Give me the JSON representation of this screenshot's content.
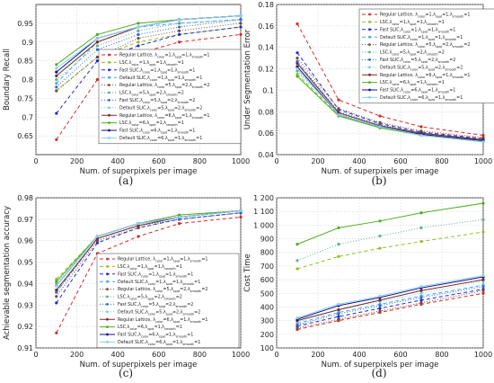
{
  "legend_series": [
    {
      "id": "rl1",
      "label": "Regular Lattice, λ_color=1,λ_spat=1,λ_smooth=1",
      "color": "#d62a2a",
      "dash": "4,3",
      "marker": "dot"
    },
    {
      "id": "lsc1",
      "label": "LSC,λ_color=1,λ_spat=1,λ_smooth=1",
      "color": "#8fc01e",
      "dash": "4,3",
      "marker": "dot"
    },
    {
      "id": "fast1",
      "label": "Fast SLIC,λ_color=1,λ_spat=1,λ_smooth=1",
      "color": "#1f2ad6",
      "dash": "4,3",
      "marker": "dot"
    },
    {
      "id": "def1",
      "label": "Default SLIC,λ_color=1,λ_spat=1,λ_smooth=1",
      "color": "#4aa8e8",
      "dash": "4,3",
      "marker": "dot"
    },
    {
      "id": "rl2",
      "label": "Regular Lattice, λ_color=5,λ_spat=2,λ_smooth=2",
      "color": "#7a4a3a",
      "dash": "1,2",
      "marker": "dot"
    },
    {
      "id": "lsc2",
      "label": "LSC,λ_color=5,λ_spat=2,λ_smooth=2",
      "color": "#5fb08a",
      "dash": "1,2",
      "marker": "dot"
    },
    {
      "id": "fast2",
      "label": "Fast SLIC,λ_color=5,λ_spat=2,λ_smooth=2",
      "color": "#2a6ad8",
      "dash": "1,2",
      "marker": "dot"
    },
    {
      "id": "def2",
      "label": "Default SLIC,λ_color=5,λ_spat=2,λ_smooth=2",
      "color": "#7ad0e8",
      "dash": "1,2",
      "marker": "dot"
    },
    {
      "id": "rl3",
      "label": "Regular Lattice, λ_color=6,λ_spat=1,λ_smooth=1",
      "color": "#7a2a2a",
      "dash": "",
      "marker": "dot"
    },
    {
      "id": "lsc3",
      "label": "LSC,λ_color=6,λ_spat=1,λ_smooth=1",
      "color": "#4caf1e",
      "dash": "",
      "marker": "dot"
    },
    {
      "id": "fast3",
      "label": "Fast SLIC,λ_color=6,λ_spat=1,λ_smooth=1",
      "color": "#10128a",
      "dash": "",
      "marker": "dot"
    },
    {
      "id": "def3",
      "label": "Default SLIC,λ_color=6,λ_spat=1,λ_smooth=1",
      "color": "#8ad0f0",
      "dash": "",
      "marker": "dot"
    }
  ],
  "chart_data": [
    {
      "panel_label": "(a)",
      "type": "line",
      "xlabel": "Num. of superpixels per image",
      "ylabel": "Boundary Recall",
      "x": [
        100,
        300,
        500,
        700,
        1000
      ],
      "xlim": [
        0,
        1000
      ],
      "ylim": [
        0.6,
        1.0
      ],
      "xticks": [
        "0",
        "200",
        "400",
        "600",
        "800",
        "1000"
      ],
      "yticks": [
        "0.65",
        "0.7",
        "0.75",
        "0.8",
        "0.85",
        "0.9",
        "0.95"
      ],
      "ytick_values": [
        0.65,
        0.7,
        0.75,
        0.8,
        0.85,
        0.9,
        0.95
      ],
      "grid": true,
      "legend": "bottom-right",
      "series": [
        {
          "ref": "rl1",
          "values": [
            0.64,
            0.8,
            0.87,
            0.9,
            0.92
          ]
        },
        {
          "ref": "lsc1",
          "values": [
            0.77,
            0.86,
            0.9,
            0.92,
            0.94
          ]
        },
        {
          "ref": "fast1",
          "values": [
            0.71,
            0.85,
            0.89,
            0.92,
            0.94
          ]
        },
        {
          "ref": "def1",
          "values": [
            0.79,
            0.9,
            0.94,
            0.95,
            0.96
          ]
        },
        {
          "ref": "rl2",
          "values": [
            0.77,
            0.86,
            0.91,
            0.93,
            0.95
          ]
        },
        {
          "ref": "lsc2",
          "values": [
            0.8,
            0.89,
            0.93,
            0.95,
            0.96
          ]
        },
        {
          "ref": "fast2",
          "values": [
            0.78,
            0.88,
            0.92,
            0.94,
            0.96
          ]
        },
        {
          "ref": "def2",
          "values": [
            0.81,
            0.91,
            0.94,
            0.96,
            0.97
          ]
        },
        {
          "ref": "rl3",
          "values": [
            0.81,
            0.9,
            0.94,
            0.96,
            0.97
          ]
        },
        {
          "ref": "lsc3",
          "values": [
            0.84,
            0.92,
            0.95,
            0.96,
            0.97
          ]
        },
        {
          "ref": "fast3",
          "values": [
            0.82,
            0.91,
            0.94,
            0.96,
            0.97
          ]
        },
        {
          "ref": "def3",
          "values": [
            0.83,
            0.91,
            0.94,
            0.96,
            0.97
          ]
        }
      ]
    },
    {
      "panel_label": "(b)",
      "type": "line",
      "xlabel": "Num. of superpixels per image",
      "ylabel": "Under Segmentation Error",
      "x": [
        100,
        300,
        500,
        700,
        1000
      ],
      "xlim": [
        0,
        1000
      ],
      "ylim": [
        0.04,
        0.18
      ],
      "xticks": [
        "0",
        "200",
        "400",
        "600",
        "800",
        "1000"
      ],
      "yticks": [
        "0.04",
        "0.06",
        "0.08",
        "0.1",
        "0.12",
        "0.14",
        "0.16",
        "0.18"
      ],
      "ytick_values": [
        0.04,
        0.06,
        0.08,
        0.1,
        0.12,
        0.14,
        0.16,
        0.18
      ],
      "grid": true,
      "legend": "top-right",
      "series": [
        {
          "ref": "rl1",
          "values": [
            0.162,
            0.091,
            0.076,
            0.066,
            0.058
          ]
        },
        {
          "ref": "lsc1",
          "values": [
            0.115,
            0.077,
            0.065,
            0.058,
            0.052
          ]
        },
        {
          "ref": "fast1",
          "values": [
            0.135,
            0.082,
            0.069,
            0.061,
            0.055
          ]
        },
        {
          "ref": "def1",
          "values": [
            0.126,
            0.079,
            0.067,
            0.059,
            0.053
          ]
        },
        {
          "ref": "rl2",
          "values": [
            0.13,
            0.083,
            0.07,
            0.062,
            0.056
          ]
        },
        {
          "ref": "lsc2",
          "values": [
            0.118,
            0.078,
            0.066,
            0.058,
            0.052
          ]
        },
        {
          "ref": "fast2",
          "values": [
            0.127,
            0.08,
            0.068,
            0.06,
            0.054
          ]
        },
        {
          "ref": "def2",
          "values": [
            0.122,
            0.078,
            0.066,
            0.059,
            0.053
          ]
        },
        {
          "ref": "rl3",
          "values": [
            0.125,
            0.079,
            0.067,
            0.06,
            0.054
          ]
        },
        {
          "ref": "lsc3",
          "values": [
            0.113,
            0.076,
            0.065,
            0.058,
            0.052
          ]
        },
        {
          "ref": "fast3",
          "values": [
            0.122,
            0.077,
            0.066,
            0.059,
            0.053
          ]
        },
        {
          "ref": "def3",
          "values": [
            0.12,
            0.077,
            0.066,
            0.058,
            0.052
          ]
        }
      ]
    },
    {
      "panel_label": "(c)",
      "type": "line",
      "xlabel": "Num. of superpixels per image",
      "ylabel": "Achievable segmentation accuracy",
      "x": [
        100,
        300,
        500,
        700,
        1000
      ],
      "xlim": [
        0,
        1000
      ],
      "ylim": [
        0.91,
        0.98
      ],
      "xticks": [
        "0",
        "200",
        "400",
        "600",
        "800",
        "1000"
      ],
      "yticks": [
        "0.91",
        "0.92",
        "0.93",
        "0.94",
        "0.95",
        "0.96",
        "0.97",
        "0.98"
      ],
      "ytick_values": [
        0.91,
        0.92,
        0.93,
        0.94,
        0.95,
        0.96,
        0.97,
        0.98
      ],
      "grid": true,
      "legend": "bottom-right",
      "series": [
        {
          "ref": "rl1",
          "values": [
            0.917,
            0.954,
            0.962,
            0.968,
            0.971
          ]
        },
        {
          "ref": "lsc1",
          "values": [
            0.942,
            0.962,
            0.968,
            0.971,
            0.974
          ]
        },
        {
          "ref": "fast1",
          "values": [
            0.931,
            0.959,
            0.966,
            0.97,
            0.973
          ]
        },
        {
          "ref": "def1",
          "values": [
            0.936,
            0.961,
            0.967,
            0.971,
            0.974
          ]
        },
        {
          "ref": "rl2",
          "values": [
            0.934,
            0.96,
            0.966,
            0.97,
            0.973
          ]
        },
        {
          "ref": "lsc2",
          "values": [
            0.94,
            0.962,
            0.968,
            0.971,
            0.974
          ]
        },
        {
          "ref": "fast2",
          "values": [
            0.936,
            0.961,
            0.967,
            0.97,
            0.973
          ]
        },
        {
          "ref": "def2",
          "values": [
            0.937,
            0.961,
            0.967,
            0.971,
            0.974
          ]
        },
        {
          "ref": "rl3",
          "values": [
            0.937,
            0.961,
            0.967,
            0.971,
            0.974
          ]
        },
        {
          "ref": "lsc3",
          "values": [
            0.941,
            0.962,
            0.968,
            0.972,
            0.974
          ]
        },
        {
          "ref": "fast3",
          "values": [
            0.939,
            0.962,
            0.968,
            0.971,
            0.974
          ]
        },
        {
          "ref": "def3",
          "values": [
            0.939,
            0.962,
            0.968,
            0.971,
            0.974
          ]
        }
      ]
    },
    {
      "panel_label": "(d)",
      "type": "line",
      "xlabel": "Num. of superpixels per image",
      "ylabel": "Cost Time",
      "x": [
        100,
        300,
        500,
        700,
        1000
      ],
      "xlim": [
        0,
        1000
      ],
      "ylim": [
        100,
        1200
      ],
      "xticks": [
        "0",
        "200",
        "400",
        "600",
        "800",
        "1000"
      ],
      "yticks": [
        "100",
        "200",
        "300",
        "400",
        "500",
        "600",
        "700",
        "800",
        "900",
        "1 000",
        "1 100",
        "1 200"
      ],
      "ytick_values": [
        100,
        200,
        300,
        400,
        500,
        600,
        700,
        800,
        900,
        1000,
        1100,
        1200
      ],
      "grid": true,
      "legend": "none",
      "series": [
        {
          "ref": "rl1",
          "values": [
            235,
            300,
            360,
            420,
            500
          ]
        },
        {
          "ref": "lsc1",
          "values": [
            680,
            770,
            830,
            880,
            950
          ]
        },
        {
          "ref": "fast1",
          "values": [
            260,
            330,
            390,
            450,
            530
          ]
        },
        {
          "ref": "def1",
          "values": [
            280,
            360,
            420,
            480,
            560
          ]
        },
        {
          "ref": "rl2",
          "values": [
            245,
            310,
            370,
            430,
            520
          ]
        },
        {
          "ref": "lsc2",
          "values": [
            740,
            860,
            920,
            980,
            1040
          ]
        },
        {
          "ref": "fast2",
          "values": [
            270,
            350,
            410,
            470,
            550
          ]
        },
        {
          "ref": "def2",
          "values": [
            290,
            380,
            440,
            500,
            590
          ]
        },
        {
          "ref": "rl3",
          "values": [
            300,
            380,
            450,
            520,
            600
          ]
        },
        {
          "ref": "lsc3",
          "values": [
            860,
            980,
            1030,
            1090,
            1160
          ]
        },
        {
          "ref": "fast3",
          "values": [
            310,
            410,
            470,
            540,
            620
          ]
        },
        {
          "ref": "def3",
          "values": [
            320,
            420,
            480,
            550,
            630
          ]
        }
      ]
    }
  ]
}
